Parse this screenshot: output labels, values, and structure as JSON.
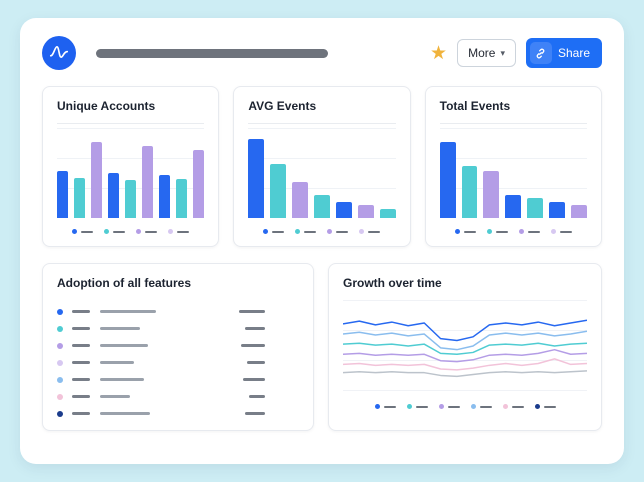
{
  "header": {
    "more_label": "More",
    "share_label": "Share",
    "star_icon": "★",
    "chevron_icon": "▾"
  },
  "colors": {
    "blue": "#2668f0",
    "teal": "#4fccd2",
    "purple": "#b49de6",
    "light_purple": "#d7c8f1",
    "light_blue": "#8abdee",
    "pink": "#f2c3d9",
    "navy": "#1b3c8c",
    "gray": "#bcc3cb",
    "accent_blue": "#1e6ef5",
    "star_gold": "#f0b33c"
  },
  "panels": {
    "unique_accounts_title": "Unique Accounts",
    "avg_events_title": "AVG Events",
    "total_events_title": "Total Events",
    "adoption_title": "Adoption of all features",
    "growth_title": "Growth over time"
  },
  "adoption": {
    "rows": [
      {
        "dot": "blue",
        "label_w": 18,
        "line_w": 56,
        "value_w": 26
      },
      {
        "dot": "teal",
        "label_w": 18,
        "line_w": 40,
        "value_w": 20
      },
      {
        "dot": "purple",
        "label_w": 18,
        "line_w": 48,
        "value_w": 24
      },
      {
        "dot": "light_purple",
        "label_w": 18,
        "line_w": 34,
        "value_w": 18
      },
      {
        "dot": "light_blue",
        "label_w": 18,
        "line_w": 44,
        "value_w": 22
      },
      {
        "dot": "pink",
        "label_w": 18,
        "line_w": 30,
        "value_w": 16
      },
      {
        "dot": "navy",
        "label_w": 18,
        "line_w": 50,
        "value_w": 20
      }
    ]
  },
  "chart_data": [
    {
      "id": "unique_accounts",
      "type": "bar",
      "title": "Unique Accounts",
      "values": [
        52,
        45,
        85,
        50,
        42,
        80,
        48,
        43,
        76
      ],
      "colors": [
        "blue",
        "teal",
        "purple",
        "blue",
        "teal",
        "purple",
        "blue",
        "teal",
        "purple"
      ],
      "legend": [
        "blue",
        "teal",
        "purple",
        "light_purple"
      ],
      "ylim": [
        0,
        100
      ]
    },
    {
      "id": "avg_events",
      "type": "bar",
      "title": "AVG Events",
      "values": [
        88,
        60,
        40,
        26,
        18,
        14,
        10
      ],
      "colors": [
        "blue",
        "teal",
        "purple",
        "teal",
        "blue",
        "purple",
        "teal"
      ],
      "legend": [
        "blue",
        "teal",
        "purple",
        "light_purple"
      ],
      "ylim": [
        0,
        100
      ]
    },
    {
      "id": "total_events",
      "type": "bar",
      "title": "Total Events",
      "values": [
        85,
        58,
        52,
        26,
        22,
        18,
        15
      ],
      "colors": [
        "blue",
        "teal",
        "purple",
        "blue",
        "teal",
        "blue",
        "purple"
      ],
      "legend": [
        "blue",
        "teal",
        "purple",
        "light_purple"
      ],
      "ylim": [
        0,
        100
      ]
    },
    {
      "id": "growth",
      "type": "line",
      "title": "Growth over time",
      "legend": [
        "blue",
        "teal",
        "purple",
        "light_blue",
        "pink",
        "navy"
      ],
      "ylim": [
        0,
        100
      ],
      "series": [
        {
          "name": "series-blue",
          "color": "blue",
          "values": [
            74,
            77,
            73,
            76,
            72,
            75,
            58,
            56,
            60,
            73,
            75,
            73,
            76,
            72,
            75,
            78
          ]
        },
        {
          "name": "series-light-blue",
          "color": "light_blue",
          "values": [
            63,
            65,
            62,
            64,
            61,
            63,
            48,
            46,
            50,
            62,
            64,
            62,
            64,
            61,
            63,
            66
          ]
        },
        {
          "name": "series-teal",
          "color": "teal",
          "values": [
            52,
            53,
            51,
            52,
            50,
            52,
            42,
            41,
            43,
            51,
            52,
            51,
            53,
            50,
            52,
            53
          ]
        },
        {
          "name": "series-purple",
          "color": "purple",
          "values": [
            41,
            42,
            40,
            41,
            40,
            41,
            34,
            33,
            35,
            40,
            41,
            40,
            42,
            46,
            41,
            42
          ]
        },
        {
          "name": "series-pink",
          "color": "pink",
          "values": [
            30,
            31,
            29,
            30,
            29,
            30,
            25,
            24,
            26,
            29,
            31,
            29,
            31,
            36,
            30,
            31
          ]
        },
        {
          "name": "series-gray",
          "color": "gray",
          "values": [
            21,
            22,
            21,
            22,
            21,
            21,
            18,
            17,
            19,
            21,
            22,
            21,
            22,
            21,
            22,
            23
          ]
        }
      ]
    }
  ]
}
